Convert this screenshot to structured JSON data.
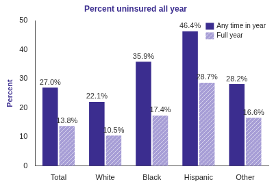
{
  "chart_data": {
    "type": "bar",
    "title": "Percent uninsured all year",
    "y_label": "Percent",
    "categories": [
      "Total",
      "White",
      "Black",
      "Hispanic",
      "Other"
    ],
    "series": [
      {
        "name": "Any time in year",
        "color": "#3b2d8f",
        "values": [
          27.0,
          22.1,
          35.9,
          46.4,
          28.2
        ],
        "value_labels": [
          "27.0%",
          "22.1%",
          "35.9%",
          "46.4%",
          "28.2%"
        ]
      },
      {
        "name": "Full year",
        "color": "#a79ed6",
        "values": [
          13.8,
          10.5,
          17.4,
          28.7,
          16.6
        ],
        "value_labels": [
          "13.8%",
          "10.5%",
          "17.4%",
          "28.7%",
          "16.6%"
        ]
      }
    ],
    "ylim": [
      0,
      50
    ],
    "yticks": [
      0,
      10,
      20,
      30,
      40,
      50
    ],
    "grid": false,
    "legend": "upper right",
    "data_labels": true
  }
}
